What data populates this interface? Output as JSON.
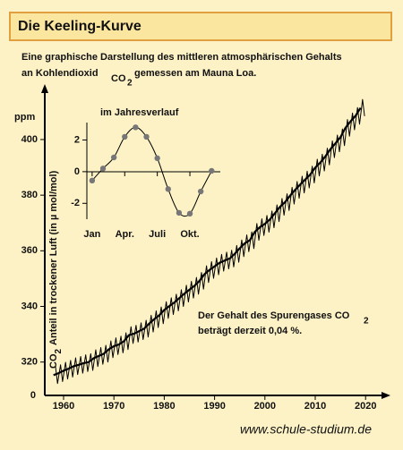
{
  "header": {
    "title": "Die Keeling-Kurve"
  },
  "subtitle": {
    "line1": "Eine graphische Darstellung des mittleren atmosphärischen Gehalts",
    "line2_start": "an Kohlendioxid",
    "line2_formula": "CO",
    "line2_subscript": "2",
    "line2_end": "gemessen am Mauna Loa."
  },
  "chart_data": [
    {
      "type": "line",
      "y_unit": "ppm",
      "y_label": {
        "formula": "CO",
        "subscript": "2",
        "text": "Anteil in trockener Luft (in µ mol/mol)"
      },
      "y_origin_label": "0",
      "xlim": [
        1956,
        2024
      ],
      "xticks": [
        1960,
        1970,
        1980,
        1990,
        2000,
        2010,
        2020
      ],
      "ylim": [
        308,
        418
      ],
      "yticks": [
        320,
        340,
        360,
        380,
        400
      ],
      "annotation": {
        "line1": "Der Gehalt des Spurengases CO",
        "subscript": "2",
        "line2": "beträgt derzeit 0,04 %."
      },
      "series": [
        {
          "color": "#000000",
          "width": 1,
          "x": [
            1958.4,
            1958.8,
            1959.4,
            1959.8,
            1960.4,
            1960.8,
            1961.4,
            1961.8,
            1962.4,
            1962.8,
            1963.4,
            1963.8,
            1964.4,
            1964.8,
            1965.4,
            1965.8,
            1966.4,
            1966.8,
            1967.4,
            1967.8,
            1968.4,
            1968.8,
            1969.4,
            1969.8,
            1970.4,
            1970.8,
            1971.4,
            1971.8,
            1972.4,
            1972.8,
            1973.4,
            1973.8,
            1974.4,
            1974.8,
            1975.4,
            1975.8,
            1976.4,
            1976.8,
            1977.4,
            1977.8,
            1978.4,
            1978.8,
            1979.4,
            1979.8,
            1980.4,
            1980.8,
            1981.4,
            1981.8,
            1982.4,
            1982.8,
            1983.4,
            1983.8,
            1984.4,
            1984.8,
            1985.4,
            1985.8,
            1986.4,
            1986.8,
            1987.4,
            1987.8,
            1988.4,
            1988.8,
            1989.4,
            1989.8,
            1990.4,
            1990.8,
            1991.4,
            1991.8,
            1992.4,
            1992.8,
            1993.4,
            1993.8,
            1994.4,
            1994.8,
            1995.4,
            1995.8,
            1996.4,
            1996.8,
            1997.4,
            1997.8,
            1998.4,
            1998.8,
            1999.4,
            1999.8,
            2000.4,
            2000.8,
            2001.4,
            2001.8,
            2002.4,
            2002.8,
            2003.4,
            2003.8,
            2004.4,
            2004.8,
            2005.4,
            2005.8,
            2006.4,
            2006.8,
            2007.4,
            2007.8,
            2008.4,
            2008.8,
            2009.4,
            2009.8,
            2010.4,
            2010.8,
            2011.4,
            2011.8,
            2012.4,
            2012.8,
            2013.4,
            2013.8,
            2014.4,
            2014.8,
            2015.4,
            2015.8,
            2016.4,
            2016.8,
            2017.4,
            2017.8,
            2018.4,
            2018.8,
            2019.4,
            2019.8
          ],
          "values": [
            318.3,
            312.3,
            319.0,
            313.0,
            319.9,
            313.9,
            320.6,
            314.6,
            321.5,
            315.5,
            322.0,
            316.0,
            322.6,
            316.6,
            323.0,
            317.0,
            324.4,
            318.4,
            325.2,
            319.2,
            326.0,
            320.0,
            327.6,
            321.6,
            328.7,
            322.7,
            329.3,
            323.3,
            330.5,
            324.5,
            332.7,
            326.7,
            333.2,
            327.2,
            334.1,
            328.1,
            335.0,
            329.0,
            336.8,
            330.8,
            338.4,
            332.4,
            339.8,
            333.8,
            341.7,
            335.7,
            343.1,
            337.1,
            344.4,
            338.4,
            346.0,
            340.0,
            347.6,
            341.6,
            349.0,
            343.0,
            350.4,
            344.4,
            352.2,
            346.2,
            354.6,
            348.6,
            356.1,
            350.1,
            357.4,
            351.4,
            358.7,
            352.7,
            359.5,
            353.5,
            360.2,
            354.2,
            361.9,
            355.9,
            363.9,
            357.9,
            365.7,
            359.7,
            366.8,
            360.8,
            369.8,
            363.8,
            371.5,
            365.5,
            372.7,
            366.7,
            374.3,
            368.3,
            376.5,
            370.5,
            378.8,
            372.8,
            380.5,
            374.5,
            382.8,
            376.8,
            384.9,
            378.9,
            386.8,
            380.8,
            388.6,
            382.6,
            390.4,
            384.4,
            392.9,
            386.9,
            394.7,
            388.7,
            396.9,
            390.9,
            399.5,
            393.5,
            401.6,
            395.6,
            403.8,
            397.8,
            407.2,
            401.2,
            409.5,
            403.5,
            411.5,
            405.5,
            414.4,
            408.4
          ]
        },
        {
          "color": "#000000",
          "width": 2.2,
          "x": [
            1958,
            1959,
            1960,
            1961,
            1962,
            1963,
            1964,
            1965,
            1966,
            1967,
            1968,
            1969,
            1970,
            1971,
            1972,
            1973,
            1974,
            1975,
            1976,
            1977,
            1978,
            1979,
            1980,
            1981,
            1982,
            1983,
            1984,
            1985,
            1986,
            1987,
            1988,
            1989,
            1990,
            1991,
            1992,
            1993,
            1994,
            1995,
            1996,
            1997,
            1998,
            1999,
            2000,
            2001,
            2002,
            2003,
            2004,
            2005,
            2006,
            2007,
            2008,
            2009,
            2010,
            2011,
            2012,
            2013,
            2014,
            2015,
            2016,
            2017,
            2018,
            2019
          ],
          "values": [
            315.3,
            316.0,
            316.9,
            317.6,
            318.5,
            319.0,
            319.6,
            320.0,
            321.4,
            322.2,
            323.0,
            324.6,
            325.7,
            326.3,
            327.5,
            329.7,
            330.2,
            331.1,
            332.0,
            333.8,
            335.4,
            336.8,
            338.7,
            340.1,
            341.4,
            343.0,
            344.6,
            346.0,
            347.4,
            349.2,
            351.6,
            353.1,
            354.4,
            355.7,
            356.5,
            357.2,
            358.9,
            360.9,
            362.7,
            363.8,
            366.8,
            368.5,
            369.7,
            371.3,
            373.5,
            375.8,
            377.5,
            379.8,
            381.9,
            383.8,
            385.6,
            387.4,
            389.9,
            391.7,
            393.9,
            396.5,
            398.6,
            400.8,
            404.2,
            406.5,
            408.5,
            411.4
          ]
        }
      ]
    },
    {
      "type": "line",
      "title": "im Jahresverlauf",
      "color": "#000000",
      "marker_color": "#777777",
      "x": [
        1,
        2,
        3,
        4,
        5,
        6,
        7,
        8,
        9,
        10,
        11,
        12
      ],
      "values": [
        -0.56,
        0.2,
        0.9,
        2.2,
        2.8,
        2.2,
        0.85,
        -1.1,
        -2.6,
        -2.65,
        -1.25,
        0.05
      ],
      "xlim": [
        0.35,
        12.8
      ],
      "xticks": [
        {
          "value": 1,
          "label": "Jan"
        },
        {
          "value": 4,
          "label": "Apr."
        },
        {
          "value": 7,
          "label": "Juli"
        },
        {
          "value": 10,
          "label": "Okt."
        }
      ],
      "ylim": [
        -3,
        3.1
      ],
      "yticks": [
        -2,
        0,
        2
      ]
    }
  ],
  "footer": "www.schule-studium.de"
}
